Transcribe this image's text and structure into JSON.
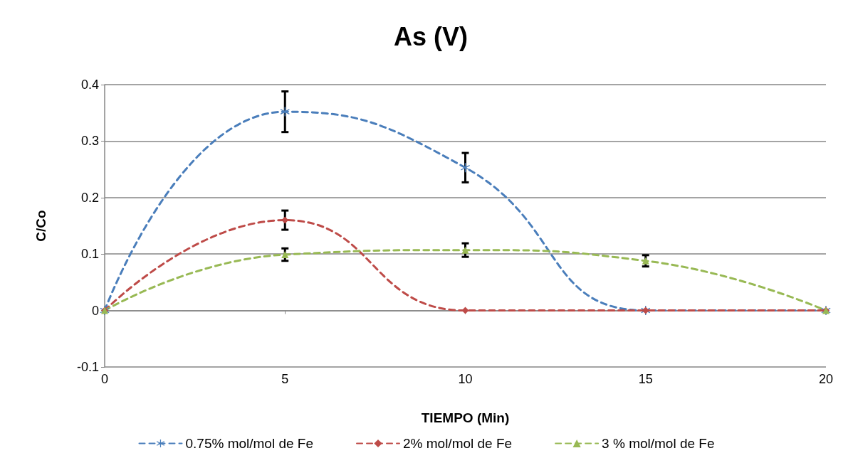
{
  "chart_data": {
    "type": "line",
    "title": "As (V)",
    "xlabel": "TIEMPO (Min)",
    "ylabel": "C/Co",
    "x": [
      0,
      5,
      10,
      15,
      20
    ],
    "series": [
      {
        "name": "0.75% mol/mol de Fe",
        "color": "#4a7ebb",
        "marker": "cross",
        "values": [
          0,
          0.352,
          0.253,
          0,
          0
        ],
        "errors": [
          null,
          0.036,
          0.026,
          null,
          null
        ]
      },
      {
        "name": "2% mol/mol de Fe",
        "color": "#be4b48",
        "marker": "diamond",
        "values": [
          0,
          0.16,
          0,
          0,
          0
        ],
        "errors": [
          null,
          0.017,
          null,
          null,
          null
        ]
      },
      {
        "name": "3 % mol/mol de Fe",
        "color": "#98b954",
        "marker": "triangle",
        "values": [
          0,
          0.099,
          0.107,
          0.088,
          0
        ],
        "errors": [
          null,
          0.011,
          0.012,
          0.01,
          null
        ]
      }
    ],
    "xlim": [
      0,
      20
    ],
    "xticks": [
      0,
      5,
      10,
      15,
      20
    ],
    "ylim": [
      -0.1,
      0.4
    ],
    "yticks": [
      -0.1,
      0,
      0.1,
      0.2,
      0.3,
      0.4
    ],
    "grid": "y",
    "legend": "bottom",
    "line_style": "dashed"
  }
}
